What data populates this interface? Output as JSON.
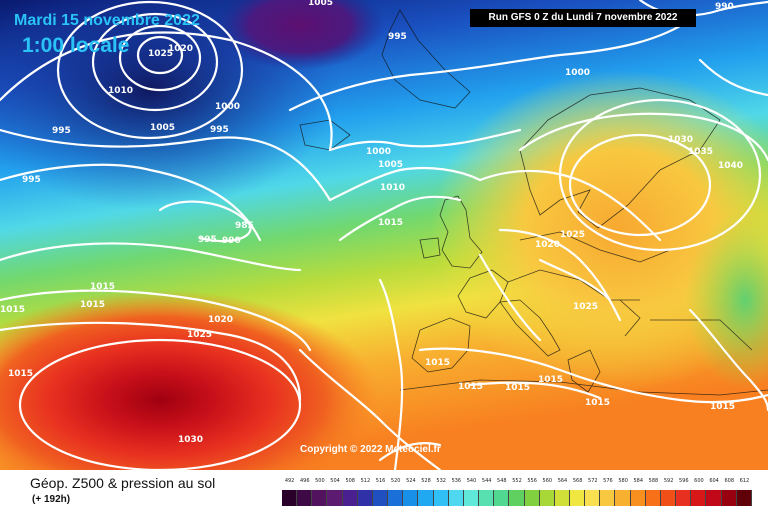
{
  "header": {
    "date": "Mardi 15 novembre 2022",
    "local_time": "1:00 locale",
    "run": "Run GFS 0 Z du Lundi 7 novembre 2022"
  },
  "copyright": "Copyright © 2022 Meteociel.fr",
  "legend": {
    "title": "Géop. Z500 & pression au sol",
    "subtitle": "(+ 192h)",
    "scale_values": [
      "492",
      "496",
      "500",
      "504",
      "508",
      "512",
      "516",
      "520",
      "524",
      "528",
      "532",
      "536",
      "540",
      "544",
      "548",
      "552",
      "556",
      "560",
      "564",
      "568",
      "572",
      "576",
      "580",
      "584",
      "588",
      "592",
      "596",
      "600",
      "604",
      "608",
      "612"
    ],
    "scale_colors": [
      "#2a002a",
      "#3e0a46",
      "#52125e",
      "#5c1a70",
      "#4a1f8f",
      "#3030a8",
      "#2050c0",
      "#1a70d8",
      "#1890e8",
      "#20a8f0",
      "#30c0f5",
      "#50d8f0",
      "#60e8d8",
      "#58e0b0",
      "#50d890",
      "#60d060",
      "#80d040",
      "#a8d838",
      "#d0e038",
      "#f0e840",
      "#f8e050",
      "#f8c840",
      "#f8b030",
      "#f89020",
      "#f87018",
      "#f05018",
      "#e83020",
      "#d81818",
      "#c00818",
      "#980010",
      "#600008"
    ]
  },
  "isobars": [
    "1005",
    "995",
    "1025",
    "1020",
    "1010",
    "1000",
    "1005",
    "995",
    "995",
    "1000",
    "995",
    "1000",
    "1005",
    "1010",
    "985",
    "995",
    "990",
    "1015",
    "1015",
    "1015",
    "1015",
    "1020",
    "1025",
    "1015",
    "1030",
    "1030",
    "1035",
    "1040",
    "1025",
    "1020",
    "1025",
    "1015",
    "1015",
    "1015",
    "1015",
    "1015",
    "1015",
    "990"
  ]
}
